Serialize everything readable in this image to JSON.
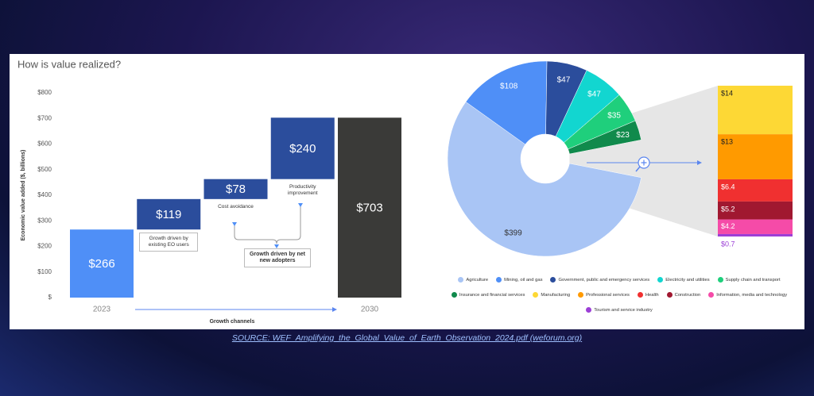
{
  "source": "SOURCE: WEF_Amplifying_the_Global_Value_of_Earth_Observation_2024.pdf (weforum.org)",
  "chart_data": [
    {
      "type": "waterfall",
      "title": "How is value realized?",
      "ylabel": "Economic value added ($, billions)",
      "xlabel": "Growth channels",
      "categories": [
        "2023",
        "Growth driven by existing EO users",
        "Cost avoidance",
        "Productivity improvement",
        "2030"
      ],
      "values": [
        266,
        119,
        78,
        240,
        703
      ],
      "value_labels": [
        "$266",
        "$119",
        "$78",
        "$240",
        "$703"
      ],
      "colors": [
        "#4f8ff7",
        "#2b4d9c",
        "#2b4d9c",
        "#2b4d9c",
        "#3a3a38"
      ],
      "annotation": "Growth driven by net new adopters",
      "ylim": [
        0,
        800
      ],
      "yticks": [
        {
          "value": 0,
          "label": "$"
        },
        {
          "value": 100,
          "label": "$100"
        },
        {
          "value": 200,
          "label": "$200"
        },
        {
          "value": 300,
          "label": "$300"
        },
        {
          "value": 400,
          "label": "$400"
        },
        {
          "value": 500,
          "label": "$500"
        },
        {
          "value": 600,
          "label": "$600"
        },
        {
          "value": 700,
          "label": "$700"
        },
        {
          "value": 800,
          "label": "$800"
        }
      ],
      "grid": false
    },
    {
      "type": "pie",
      "categories": [
        "Agriculture",
        "Mining, oil and gas",
        "Government, public and emergency services",
        "Electricity and utilities",
        "Supply chain and transport",
        "Insurance and financial services"
      ],
      "values": [
        399,
        108,
        47,
        47,
        35,
        23
      ],
      "value_labels": [
        "$399",
        "$108",
        "$47",
        "$47",
        "$35",
        "$23"
      ],
      "colors": [
        "#a9c5f5",
        "#4f8ff7",
        "#2b4d9c",
        "#12d6d0",
        "#1fcf7c",
        "#108a4c"
      ]
    },
    {
      "type": "bar",
      "stacked": true,
      "series": [
        {
          "name": "Manufacturing",
          "color": "#fdd835",
          "values": [
            14
          ],
          "value_labels": [
            "$14"
          ]
        },
        {
          "name": "Professional services",
          "color": "#ff9a00",
          "values": [
            13
          ],
          "value_labels": [
            "$13"
          ]
        },
        {
          "name": "Health",
          "color": "#f03030",
          "values": [
            6.4
          ],
          "value_labels": [
            "$6.4"
          ]
        },
        {
          "name": "Construction",
          "color": "#a01830",
          "values": [
            5.2
          ],
          "value_labels": [
            "$5.2"
          ]
        },
        {
          "name": "Information, media and technology",
          "color": "#f54ba8",
          "values": [
            4.2
          ],
          "value_labels": [
            "$4.2"
          ]
        },
        {
          "name": "Tourism and service industry",
          "color": "#9c3fd6",
          "values": [
            0.7
          ],
          "value_labels": [
            "$0.7"
          ]
        }
      ]
    }
  ]
}
